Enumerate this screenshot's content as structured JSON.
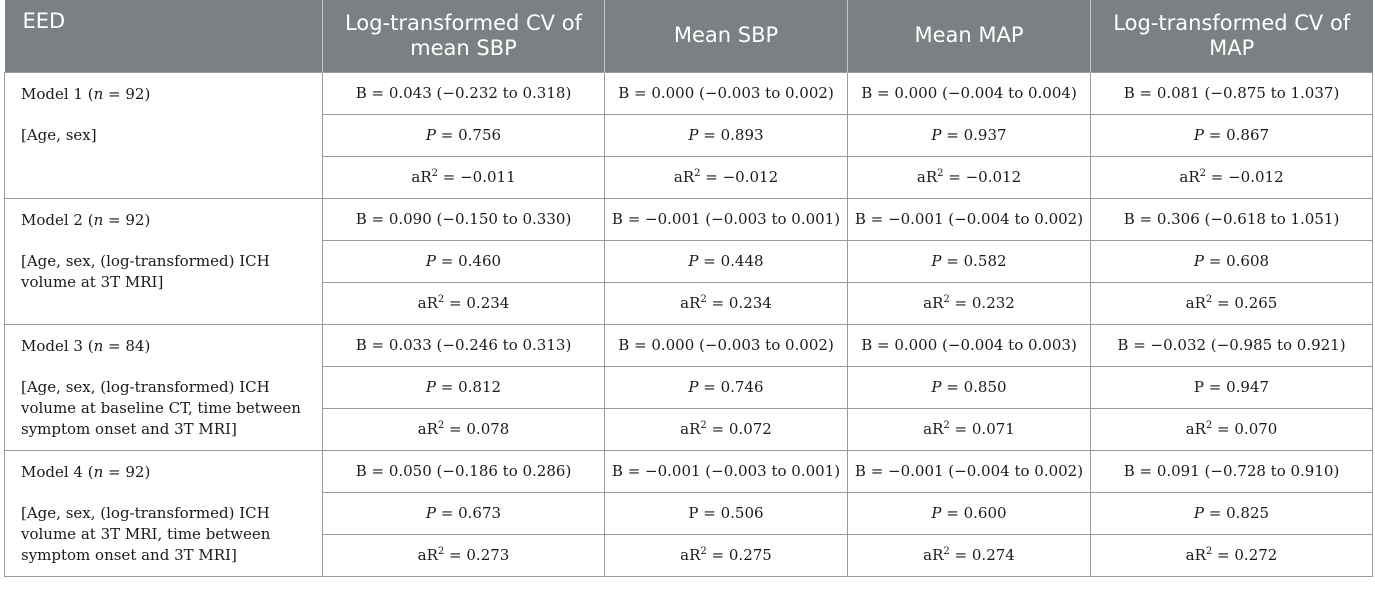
{
  "header": {
    "col0": "EED",
    "col1": "Log-transformed CV of mean SBP",
    "col2": "Mean SBP",
    "col3": "Mean MAP",
    "col4": "Log-transformed CV of MAP"
  },
  "models": [
    {
      "name_prefix": "Model 1 (",
      "n_var": "n",
      "n_value": " = 92)",
      "covariates": "[Age, sex]",
      "rows": [
        [
          "B = 0.043 (−0.232 to 0.318)",
          "B = 0.000 (−0.003 to 0.002)",
          "B = 0.000 (−0.004 to 0.004)",
          "B = 0.081 (−0.875 to 1.037)"
        ],
        [
          "0.756",
          "0.893",
          "0.937",
          "0.867"
        ],
        [
          "−0.011",
          "−0.012",
          "−0.012",
          "−0.012"
        ]
      ]
    },
    {
      "name_prefix": "Model 2 (",
      "n_var": "n",
      "n_value": " = 92)",
      "covariates": "[Age, sex, (log-transformed) ICH volume at 3T MRI]",
      "rows": [
        [
          "B = 0.090 (−0.150 to 0.330)",
          "B = −0.001 (−0.003 to 0.001)",
          "B = −0.001 (−0.004 to 0.002)",
          "B = 0.306 (−0.618 to 1.051)"
        ],
        [
          "0.460",
          "0.448",
          "0.582",
          "0.608"
        ],
        [
          "0.234",
          "0.234",
          "0.232",
          "0.265"
        ]
      ]
    },
    {
      "name_prefix": "Model 3 (",
      "n_var": "n",
      "n_value": " = 84)",
      "covariates": "[Age, sex, (log-transformed) ICH volume at baseline CT, time between symptom onset and 3T MRI]",
      "rows": [
        [
          "B = 0.033 (−0.246 to 0.313)",
          "B = 0.000 (−0.003 to 0.002)",
          "B = 0.000 (−0.004 to 0.003)",
          "B = −0.032 (−0.985 to 0.921)"
        ],
        [
          "0.812",
          "0.746",
          "0.850",
          "0.947"
        ],
        [
          "0.078",
          "0.072",
          "0.071",
          "0.070"
        ]
      ]
    },
    {
      "name_prefix": "Model 4 (",
      "n_var": "n",
      "n_value": " = 92)",
      "covariates": "[Age, sex, (log-transformed) ICH volume at 3T MRI, time between symptom onset and 3T MRI]",
      "rows": [
        [
          "B = 0.050 (−0.186 to 0.286)",
          "B = −0.001 (−0.003 to 0.001)",
          "B = −0.001 (−0.004 to 0.002)",
          "B = 0.091 (−0.728 to 0.910)"
        ],
        [
          "0.673",
          "0.506",
          "0.600",
          "0.825"
        ],
        [
          "0.273",
          "0.275",
          "0.274",
          "0.272"
        ]
      ]
    }
  ],
  "p_prefix": {
    "italic": "P",
    "upright": "P",
    "equals": " = "
  },
  "ar2_prefix": {
    "base": "aR",
    "sup": "2",
    "equals": " = "
  }
}
